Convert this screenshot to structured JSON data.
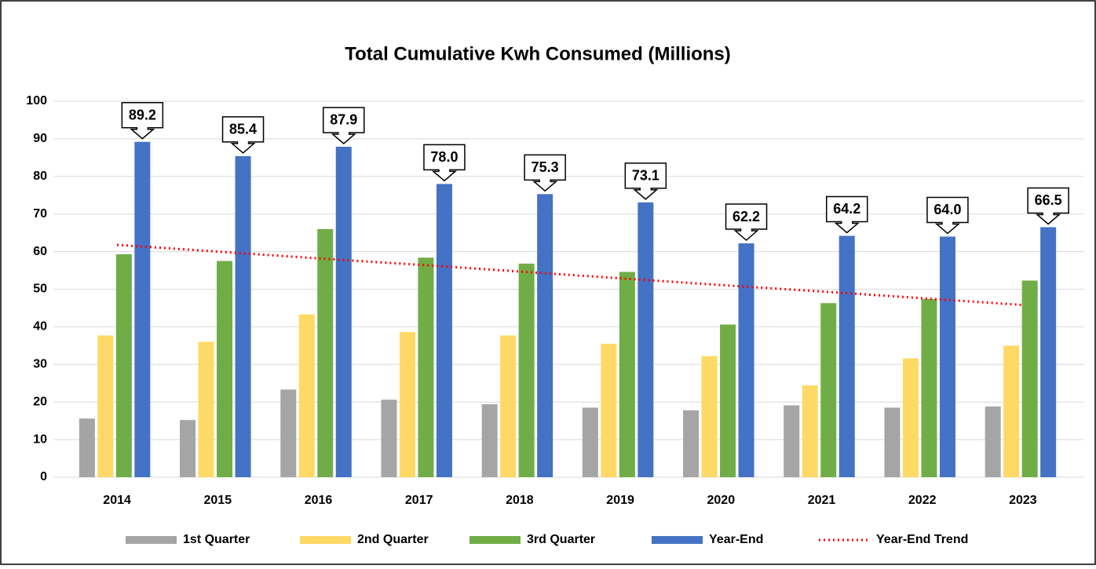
{
  "chart_data": {
    "type": "bar",
    "title": "Total Cumulative Kwh Consumed (Millions)",
    "categories": [
      "2014",
      "2015",
      "2016",
      "2017",
      "2018",
      "2019",
      "2020",
      "2021",
      "2022",
      "2023"
    ],
    "series": [
      {
        "name": "1st Quarter",
        "color": "#a5a5a5",
        "values": [
          15.6,
          15.2,
          23.3,
          20.6,
          19.4,
          18.5,
          17.8,
          19.1,
          18.5,
          18.8
        ]
      },
      {
        "name": "2nd Quarter",
        "color": "#ffd966",
        "values": [
          37.7,
          36.0,
          43.3,
          38.6,
          37.7,
          35.5,
          32.2,
          24.4,
          31.6,
          35.0
        ]
      },
      {
        "name": "3rd Quarter",
        "color": "#70ad47",
        "values": [
          59.3,
          57.5,
          66.0,
          58.4,
          56.8,
          54.6,
          40.6,
          46.3,
          47.4,
          52.3
        ]
      },
      {
        "name": "Year-End",
        "color": "#4472c4",
        "values": [
          89.2,
          85.4,
          87.9,
          78.0,
          75.3,
          73.1,
          62.2,
          64.2,
          64.0,
          66.5
        ],
        "value_labels": [
          "89.2",
          "85.4",
          "87.9",
          "78.0",
          "75.3",
          "73.1",
          "62.2",
          "64.2",
          "64.0",
          "66.5"
        ]
      },
      {
        "name": "Year-End Trend",
        "color": "#ff0000",
        "type": "line",
        "style": "dotted",
        "values": [
          61.8,
          60.0,
          58.2,
          56.5,
          54.7,
          52.9,
          51.1,
          49.4,
          47.6,
          45.8
        ]
      }
    ],
    "ylim": [
      0,
      100
    ],
    "yticks": [
      0,
      10,
      20,
      30,
      40,
      50,
      60,
      70,
      80,
      90,
      100
    ],
    "grid": true,
    "legend": "bottom"
  }
}
